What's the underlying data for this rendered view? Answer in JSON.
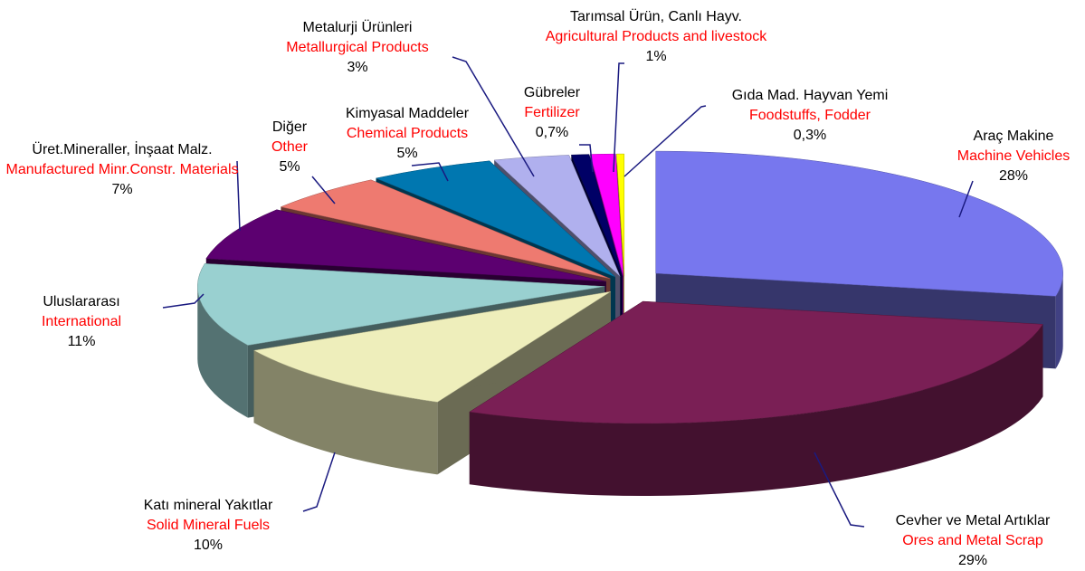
{
  "chart_data": {
    "type": "pie",
    "categories": [
      "Araç Makine",
      "Cevher ve Metal Artıklar",
      "Katı mineral Yakıtlar",
      "Uluslararası",
      "Üret.Mineraller, İnşaat Malz.",
      "Diğer",
      "Kimyasal Maddeler",
      "Metalurji Ürünleri",
      "Gübreler",
      "Tarımsal Ürün, Canlı Hayv.",
      "Gıda Mad. Hayvan Yemi"
    ],
    "categories_en": [
      "Machine Vehicles",
      "Ores and Metal Scrap",
      "Solid Mineral Fuels",
      "International",
      "Manufactured Minr.Constr. Materials",
      "Other",
      "Chemical Products",
      "Metallurgical Products",
      "Fertilizer",
      "Agricultural Products and livestock",
      "Foodstuffs, Fodder"
    ],
    "values": [
      28,
      29,
      10,
      11,
      7,
      5,
      5,
      3,
      0.7,
      1,
      0.3
    ],
    "value_labels": [
      "28%",
      "29%",
      "10%",
      "11%",
      "7%",
      "5%",
      "5%",
      "3%",
      "0,7%",
      "1%",
      "0,3%"
    ],
    "colors": [
      "#7777ee",
      "#7a1f55",
      "#eeeebb",
      "#99d0d0",
      "#5c0070",
      "#ee7a70",
      "#0077b0",
      "#b0b0ee",
      "#000066",
      "#ff00ff",
      "#ffff00"
    ]
  }
}
